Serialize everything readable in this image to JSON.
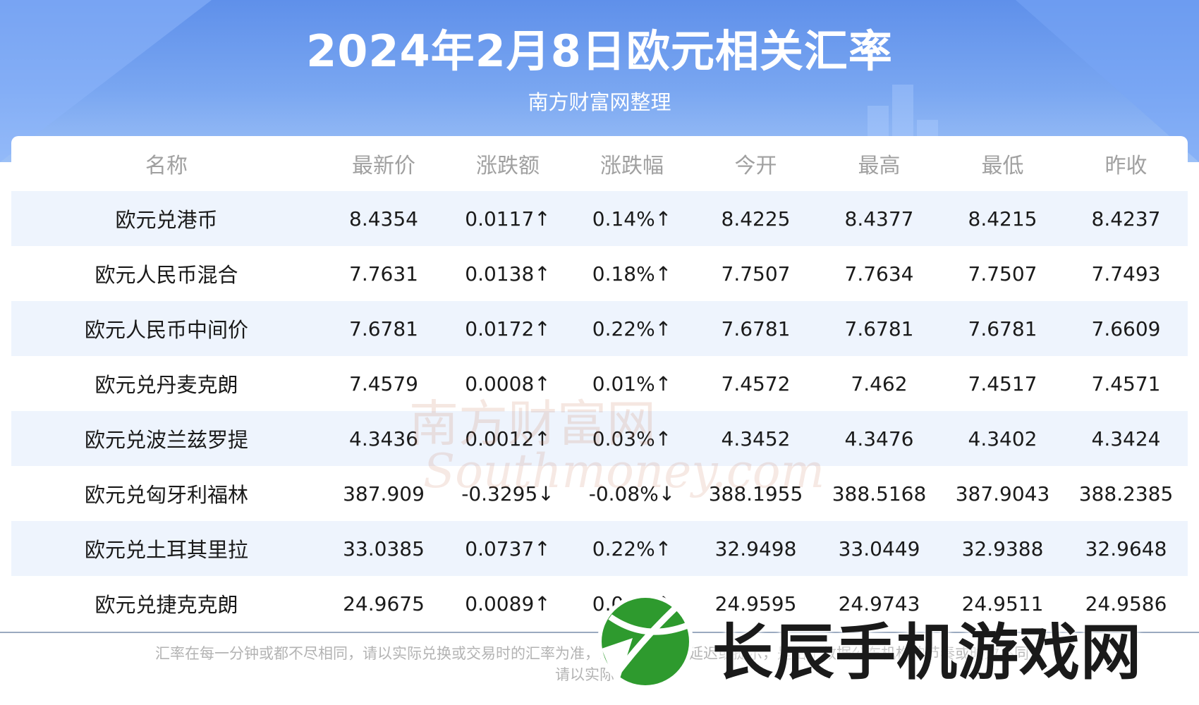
{
  "header": {
    "title": "2024年2月8日欧元相关汇率",
    "subtitle": "南方财富网整理"
  },
  "table": {
    "columns": [
      "名称",
      "最新价",
      "涨跌额",
      "涨跌幅",
      "今开",
      "最高",
      "最低",
      "昨收"
    ],
    "rows": [
      {
        "name": "欧元兑港币",
        "latest": "8.4354",
        "change": "0.0117↑",
        "pct": "0.14%↑",
        "open": "8.4225",
        "high": "8.4377",
        "low": "8.4215",
        "prev": "8.4237",
        "trend": "up"
      },
      {
        "name": "欧元人民币混合",
        "latest": "7.7631",
        "change": "0.0138↑",
        "pct": "0.18%↑",
        "open": "7.7507",
        "high": "7.7634",
        "low": "7.7507",
        "prev": "7.7493",
        "trend": "up"
      },
      {
        "name": "欧元人民币中间价",
        "latest": "7.6781",
        "change": "0.0172↑",
        "pct": "0.22%↑",
        "open": "7.6781",
        "high": "7.6781",
        "low": "7.6781",
        "prev": "7.6609",
        "trend": "up"
      },
      {
        "name": "欧元兑丹麦克朗",
        "latest": "7.4579",
        "change": "0.0008↑",
        "pct": "0.01%↑",
        "open": "7.4572",
        "high": "7.462",
        "low": "7.4517",
        "prev": "7.4571",
        "trend": "up"
      },
      {
        "name": "欧元兑波兰兹罗提",
        "latest": "4.3436",
        "change": "0.0012↑",
        "pct": "0.03%↑",
        "open": "4.3452",
        "high": "4.3476",
        "low": "4.3402",
        "prev": "4.3424",
        "trend": "up"
      },
      {
        "name": "欧元兑匈牙利福林",
        "latest": "387.909",
        "change": "-0.3295↓",
        "pct": "-0.08%↓",
        "open": "388.1955",
        "high": "388.5168",
        "low": "387.9043",
        "prev": "388.2385",
        "trend": "down"
      },
      {
        "name": "欧元兑土耳其里拉",
        "latest": "33.0385",
        "change": "0.0737↑",
        "pct": "0.22%↑",
        "open": "32.9498",
        "high": "33.0449",
        "low": "32.9388",
        "prev": "32.9648",
        "trend": "up"
      },
      {
        "name": "欧元兑捷克克朗",
        "latest": "24.9675",
        "change": "0.0089↑",
        "pct": "0.04%↑",
        "open": "24.9595",
        "high": "24.9743",
        "low": "24.9511",
        "prev": "24.9586",
        "trend": "up"
      }
    ]
  },
  "footer": {
    "disclaimer_line1": "汇率在每一分钟或都不尽相同，请以实际兑换或交易时的汇率为准，您或许看到有延迟或提示，是由于数据公布机构的节奏或时效不同，",
    "disclaimer_line2": "请以实际为准"
  },
  "watermark": {
    "cn": "南方财富网",
    "en": "Southmoney.com"
  },
  "brand": {
    "name": "长辰手机游戏网",
    "logo_icon": "tennis-ball-icon",
    "logo_color": "#2e9a2e"
  },
  "colors": {
    "up": "#e8141b",
    "down": "#2e8a2a",
    "header_blue": "#6b9bee"
  }
}
